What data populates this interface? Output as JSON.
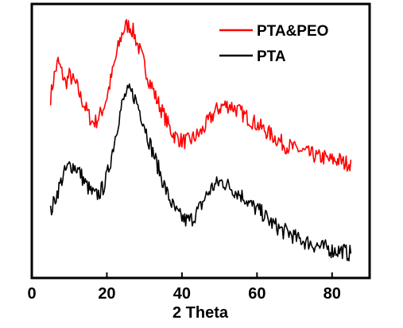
{
  "chart_data": {
    "type": "line",
    "title": "",
    "xlabel": "2 Theta",
    "ylabel": "",
    "xlim": [
      0,
      90
    ],
    "ylim": [
      0,
      1
    ],
    "x_ticks": [
      0,
      20,
      40,
      60,
      80
    ],
    "x_tick_labels": [
      "0",
      "20",
      "40",
      "60",
      "80"
    ],
    "grid": false,
    "legend_position": "top-right",
    "series": [
      {
        "name": "PTA&PEO",
        "color": "#ff0000",
        "x": [
          5,
          6,
          7,
          8,
          9,
          10,
          11,
          12,
          13,
          14,
          15,
          16,
          17,
          18,
          19,
          20,
          21,
          22,
          23,
          24,
          25,
          26,
          27,
          28,
          29,
          30,
          31,
          32,
          33,
          34,
          35,
          36,
          37,
          38,
          39,
          40,
          41,
          42,
          43,
          44,
          45,
          46,
          47,
          48,
          49,
          50,
          51,
          52,
          53,
          54,
          55,
          56,
          57,
          58,
          59,
          60,
          61,
          62,
          63,
          64,
          65,
          66,
          67,
          68,
          69,
          70,
          71,
          72,
          73,
          74,
          75,
          76,
          77,
          78,
          79,
          80,
          81,
          82,
          83,
          84,
          85
        ],
        "y": [
          0.66,
          0.74,
          0.79,
          0.75,
          0.71,
          0.74,
          0.72,
          0.7,
          0.66,
          0.63,
          0.6,
          0.57,
          0.57,
          0.59,
          0.62,
          0.66,
          0.72,
          0.78,
          0.84,
          0.89,
          0.92,
          0.92,
          0.9,
          0.86,
          0.82,
          0.78,
          0.73,
          0.7,
          0.66,
          0.63,
          0.6,
          0.57,
          0.54,
          0.52,
          0.51,
          0.5,
          0.5,
          0.5,
          0.51,
          0.52,
          0.53,
          0.55,
          0.57,
          0.59,
          0.61,
          0.62,
          0.63,
          0.63,
          0.63,
          0.62,
          0.61,
          0.6,
          0.59,
          0.58,
          0.57,
          0.56,
          0.55,
          0.54,
          0.53,
          0.52,
          0.51,
          0.5,
          0.49,
          0.48,
          0.48,
          0.47,
          0.47,
          0.46,
          0.46,
          0.45,
          0.45,
          0.44,
          0.44,
          0.44,
          0.43,
          0.43,
          0.43,
          0.43,
          0.42,
          0.42,
          0.42
        ]
      },
      {
        "name": "PTA",
        "color": "#000000",
        "x": [
          5,
          6,
          7,
          8,
          9,
          10,
          11,
          12,
          13,
          14,
          15,
          16,
          17,
          18,
          19,
          20,
          21,
          22,
          23,
          24,
          25,
          26,
          27,
          28,
          29,
          30,
          31,
          32,
          33,
          34,
          35,
          36,
          37,
          38,
          39,
          40,
          41,
          42,
          43,
          44,
          45,
          46,
          47,
          48,
          49,
          50,
          51,
          52,
          53,
          54,
          55,
          56,
          57,
          58,
          59,
          60,
          61,
          62,
          63,
          64,
          65,
          66,
          67,
          68,
          69,
          70,
          71,
          72,
          73,
          74,
          75,
          76,
          77,
          78,
          79,
          80,
          81,
          82,
          83,
          84,
          85
        ],
        "y": [
          0.24,
          0.28,
          0.32,
          0.36,
          0.39,
          0.41,
          0.41,
          0.4,
          0.38,
          0.35,
          0.33,
          0.31,
          0.3,
          0.31,
          0.33,
          0.37,
          0.43,
          0.5,
          0.57,
          0.63,
          0.67,
          0.68,
          0.67,
          0.64,
          0.6,
          0.56,
          0.51,
          0.47,
          0.43,
          0.39,
          0.35,
          0.31,
          0.28,
          0.25,
          0.23,
          0.22,
          0.21,
          0.21,
          0.22,
          0.24,
          0.26,
          0.29,
          0.31,
          0.33,
          0.34,
          0.35,
          0.35,
          0.34,
          0.33,
          0.32,
          0.31,
          0.3,
          0.29,
          0.27,
          0.26,
          0.25,
          0.24,
          0.23,
          0.21,
          0.2,
          0.19,
          0.18,
          0.17,
          0.17,
          0.16,
          0.15,
          0.14,
          0.14,
          0.13,
          0.13,
          0.12,
          0.12,
          0.11,
          0.11,
          0.11,
          0.1,
          0.1,
          0.1,
          0.1,
          0.09,
          0.09
        ]
      }
    ]
  }
}
